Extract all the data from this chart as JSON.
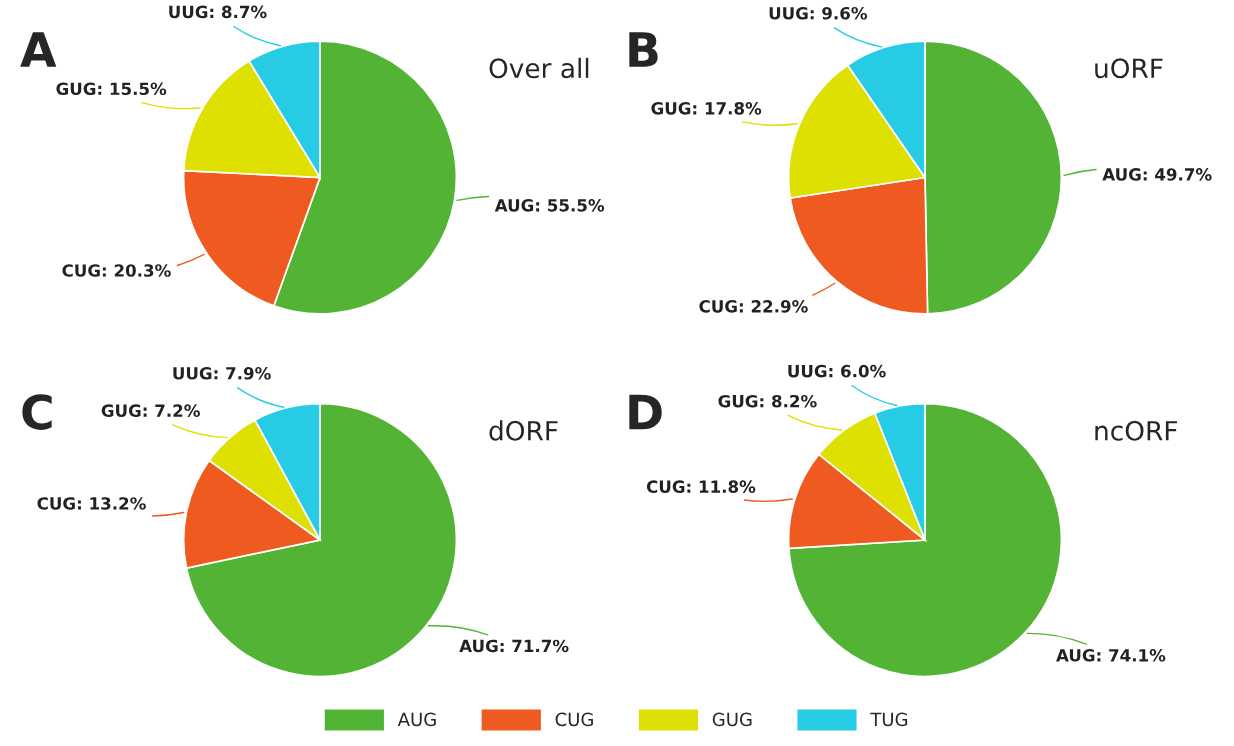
{
  "chart_data": [
    {
      "type": "pie",
      "title": "Over all",
      "annotations": [
        "A"
      ],
      "categories": [
        "AUG",
        "CUG",
        "GUG",
        "TUG"
      ],
      "values": [
        55.5,
        20.3,
        15.5,
        8.7
      ],
      "colors": [
        "#52b335",
        "#ee5a1f",
        "#dde000",
        "#27cce4"
      ],
      "value_labels": [
        "AUG: 55.5%",
        "CUG: 20.3%",
        "GUG: 15.5%",
        "UUG: 8.7%"
      ],
      "legend": "bottom"
    },
    {
      "type": "pie",
      "title": "uORF",
      "annotations": [
        "B"
      ],
      "categories": [
        null,
        null,
        null,
        null
      ],
      "values": [
        49.7,
        22.9,
        17.8,
        9.6
      ],
      "colors": [
        "#52b335",
        "#ee5a1f",
        "#dde000",
        "#27cce4"
      ],
      "value_labels": [
        "AUG: 49.7%",
        "CUG: 22.9%",
        "GUG: 17.8%",
        "UUG: 9.6%"
      ]
    },
    {
      "type": "pie",
      "title": "dORF",
      "annotations": [
        "C"
      ],
      "categories": [
        null,
        null,
        null,
        null
      ],
      "values": [
        71.7,
        13.2,
        7.2,
        7.9
      ],
      "colors": [
        "#52b335",
        "#ee5a1f",
        "#dde000",
        "#27cce4"
      ],
      "value_labels": [
        "AUG: 71.7%",
        "CUG: 13.2%",
        "GUG: 7.2%",
        "UUG: 7.9%"
      ]
    },
    {
      "type": "pie",
      "title": "ncORF",
      "annotations": [
        "D"
      ],
      "categories": [
        null,
        null,
        null,
        null
      ],
      "values": [
        74.1,
        11.8,
        8.2,
        6.0
      ],
      "colors": [
        "#52b335",
        "#ee5a1f",
        "#dde000",
        "#27cce4"
      ],
      "value_labels": [
        "AUG: 74.1%",
        "CUG: 11.8%",
        "GUG: 8.2%",
        "UUG: 6.0%"
      ]
    }
  ]
}
